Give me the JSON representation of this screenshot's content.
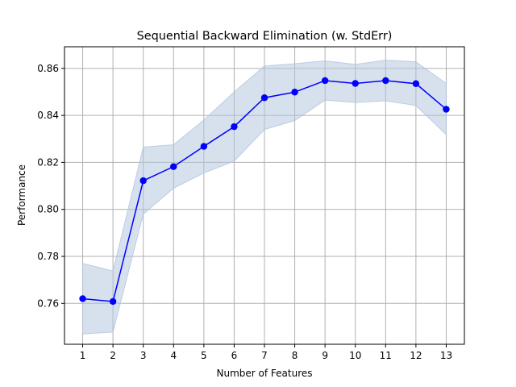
{
  "chart_data": {
    "type": "line",
    "title": "Sequential Backward Elimination (w. StdErr)",
    "xlabel": "Number of Features",
    "ylabel": "Performance",
    "x": [
      1,
      2,
      3,
      4,
      5,
      6,
      7,
      8,
      9,
      10,
      11,
      12,
      13
    ],
    "series": [
      {
        "values": [
          0.762,
          0.7608,
          0.8122,
          0.8182,
          0.8268,
          0.8352,
          0.8475,
          0.8499,
          0.8548,
          0.8536,
          0.8548,
          0.8535,
          0.8426
        ],
        "lower": [
          0.747,
          0.7478,
          0.798,
          0.809,
          0.8155,
          0.8205,
          0.834,
          0.8378,
          0.8465,
          0.8455,
          0.8462,
          0.8442,
          0.8318
        ],
        "upper": [
          0.777,
          0.7738,
          0.8265,
          0.8275,
          0.838,
          0.85,
          0.861,
          0.862,
          0.8632,
          0.8617,
          0.8635,
          0.8628,
          0.8536
        ],
        "line_color": "#0000ff",
        "band_color": "#b0c4de"
      }
    ],
    "xticks": [
      1,
      2,
      3,
      4,
      5,
      6,
      7,
      8,
      9,
      10,
      11,
      12,
      13
    ],
    "yticks": [
      0.76,
      0.78,
      0.8,
      0.82,
      0.84,
      0.86
    ],
    "xlim": [
      0.4,
      13.6
    ],
    "ylim": [
      0.7426,
      0.8692
    ],
    "grid": true
  }
}
